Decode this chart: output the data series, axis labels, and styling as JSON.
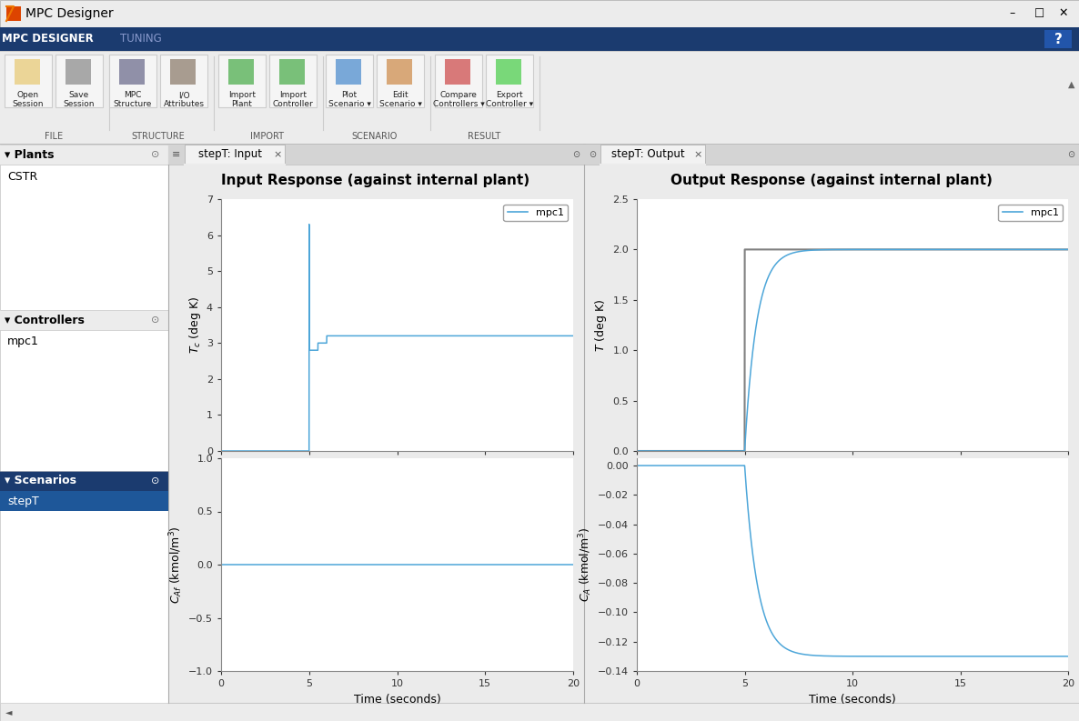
{
  "window_title": "MPC Designer",
  "tab1": "MPC DESIGNER",
  "tab2": "TUNING",
  "panel_plants_title": "Plants",
  "plant_item": "CSTR",
  "panel_controllers_title": "Controllers",
  "controller_item": "mpc1",
  "panel_scenarios_title": "Scenarios",
  "scenario_item": "stepT",
  "tab_input": "stepT: Input",
  "tab_output": "stepT: Output",
  "input_title": "Input Response (against internal plant)",
  "output_title": "Output Response (against internal plant)",
  "xlabel": "Time (seconds)",
  "legend_label": "mpc1",
  "bg_color": "#ececec",
  "plot_bg": "#ffffff",
  "header_bg": "#1b3b6f",
  "header_fg": "#ffffff",
  "line_color_blue": "#4da6d9",
  "line_color_gray": "#808080",
  "panel_header_bg": "#1b3b6f",
  "selected_item_bg": "#1e5799",
  "toolbar_bar_bg": "#dcdcdc",
  "tab_active_bg": "#f2f2f2",
  "tab_bar_bg": "#d8d8d8"
}
